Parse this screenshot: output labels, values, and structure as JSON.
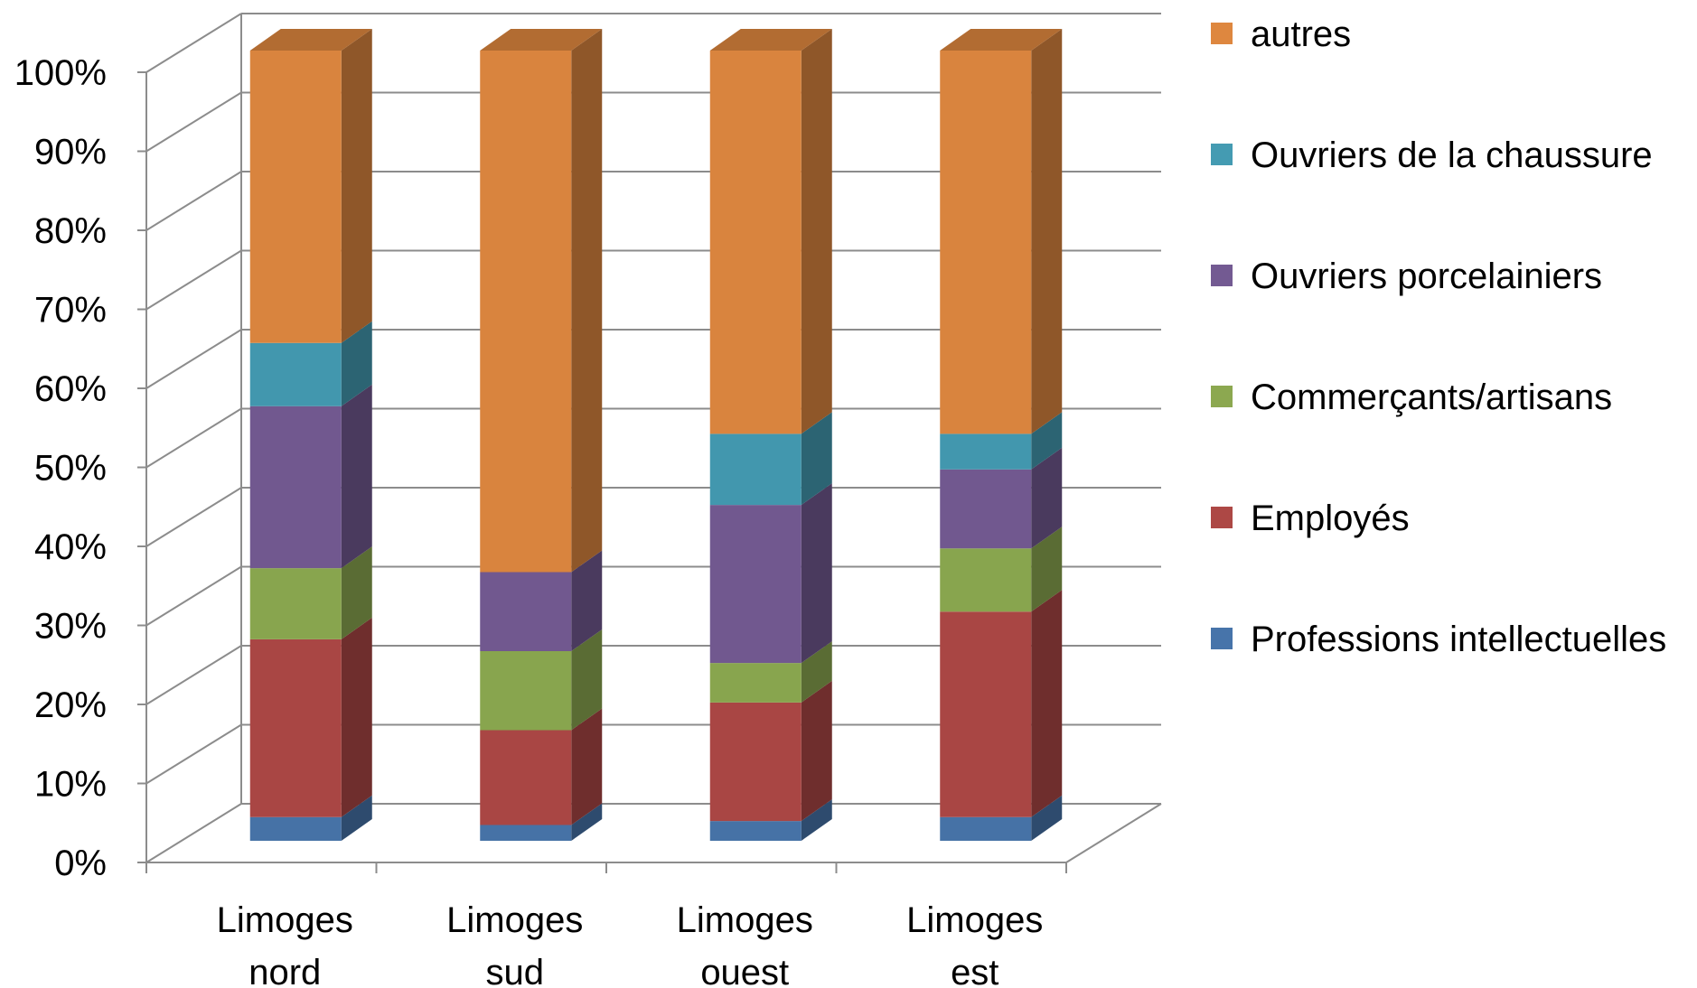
{
  "chart_data": {
    "type": "bar",
    "stacked": true,
    "percent_stacked": true,
    "three_d": true,
    "title": "",
    "xlabel": "",
    "ylabel": "",
    "ylim": [
      0,
      100
    ],
    "y_ticks": [
      "0%",
      "10%",
      "20%",
      "30%",
      "40%",
      "50%",
      "60%",
      "70%",
      "80%",
      "90%",
      "100%"
    ],
    "grid": true,
    "legend_position": "right",
    "categories": [
      [
        "Limoges",
        "nord"
      ],
      [
        "Limoges",
        "sud"
      ],
      [
        "Limoges",
        "ouest"
      ],
      [
        "Limoges",
        "est"
      ]
    ],
    "series": [
      {
        "name": "Professions intellectuelles",
        "color": "#4F81BD",
        "values": [
          3,
          2,
          2.5,
          3
        ]
      },
      {
        "name": "Employés",
        "color": "#C0504D",
        "values": [
          22.5,
          12,
          15,
          26
        ]
      },
      {
        "name": "Commerçants/artisans",
        "color": "#9BBB59",
        "values": [
          9,
          10,
          5,
          8
        ]
      },
      {
        "name": "Ouvriers porcelainiers",
        "color": "#8064A2",
        "values": [
          20.5,
          10,
          20,
          10
        ]
      },
      {
        "name": "Ouvriers de la chaussure",
        "color": "#4BACC6",
        "values": [
          8,
          0,
          9,
          4.5
        ]
      },
      {
        "name": "autres",
        "color": "#F79646",
        "values": [
          37,
          66,
          48.5,
          48.5
        ]
      }
    ]
  }
}
